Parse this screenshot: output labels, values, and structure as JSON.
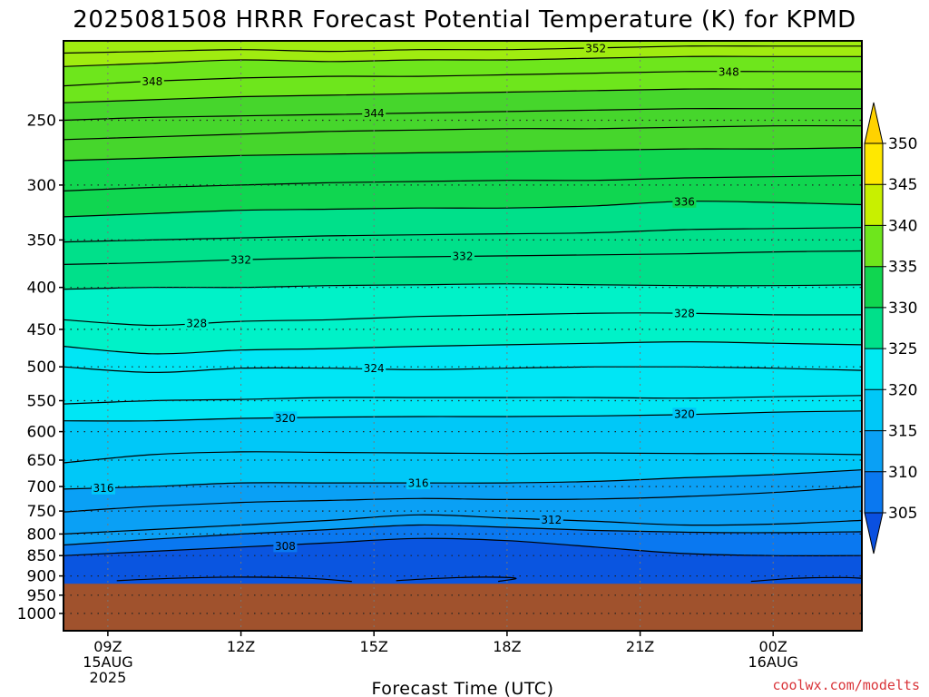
{
  "title": "2025081508 HRRR Forecast Potential Temperature (K) for KPMD",
  "credit": "coolwx.com/modelts",
  "colors": {
    "ground": "#a0522d",
    "band_colors": [
      "#0a55e0",
      "#0a78f0",
      "#0aa0f5",
      "#00c8f8",
      "#00e6f5",
      "#00f2c8",
      "#00e08a",
      "#10d650",
      "#46d62c",
      "#6ee61c",
      "#a0ec10",
      "#c8f000",
      "#ffe800",
      "#ffd200"
    ]
  },
  "chart_data": {
    "type": "contour",
    "title": "2025081508 HRRR Forecast Potential Temperature (K) for KPMD",
    "xlabel": "Forecast Time (UTC)",
    "ylabel": "",
    "x_range_hours": [
      8.0,
      26.0
    ],
    "x_ticks": [
      {
        "hour": 9,
        "lines": [
          "09Z",
          "15AUG",
          "2025"
        ]
      },
      {
        "hour": 12,
        "lines": [
          "12Z"
        ]
      },
      {
        "hour": 15,
        "lines": [
          "15Z"
        ]
      },
      {
        "hour": 18,
        "lines": [
          "18Z"
        ]
      },
      {
        "hour": 21,
        "lines": [
          "21Z"
        ]
      },
      {
        "hour": 24,
        "lines": [
          "00Z",
          "16AUG"
        ]
      }
    ],
    "y_axis": "pressure (hPa), top of plot about 200",
    "y_ticks": [
      250,
      300,
      350,
      400,
      450,
      500,
      550,
      600,
      650,
      700,
      750,
      800,
      850,
      900,
      950,
      1000
    ],
    "grid": "dotted",
    "ground_level_hpa": 920,
    "colorbar": {
      "levels": [
        305,
        310,
        315,
        320,
        325,
        330,
        335,
        340,
        345,
        350
      ],
      "extend": "both",
      "placement": "right"
    },
    "contour_interval": 2,
    "contours": [
      {
        "value": 308,
        "points": [
          [
            8.0,
            850
          ],
          [
            10,
            840
          ],
          [
            12,
            830
          ],
          [
            14,
            820
          ],
          [
            16,
            810
          ],
          [
            18,
            815
          ],
          [
            20,
            830
          ],
          [
            22,
            845
          ],
          [
            24,
            850
          ],
          [
            26,
            850
          ]
        ]
      },
      {
        "value": 310,
        "points": [
          [
            8.0,
            825
          ],
          [
            10,
            812
          ],
          [
            12,
            800
          ],
          [
            14,
            790
          ],
          [
            16,
            780
          ],
          [
            18,
            785
          ],
          [
            20,
            792
          ],
          [
            22,
            796
          ],
          [
            24,
            797
          ],
          [
            26,
            795
          ]
        ]
      },
      {
        "value": 312,
        "points": [
          [
            8.0,
            800
          ],
          [
            10,
            790
          ],
          [
            12,
            780
          ],
          [
            14,
            770
          ],
          [
            16,
            758
          ],
          [
            18,
            765
          ],
          [
            20,
            772
          ],
          [
            22,
            780
          ],
          [
            24,
            778
          ],
          [
            26,
            770
          ]
        ]
      },
      {
        "value": 314,
        "points": [
          [
            8.0,
            752
          ],
          [
            10,
            740
          ],
          [
            12,
            732
          ],
          [
            14,
            728
          ],
          [
            16,
            724
          ],
          [
            18,
            726
          ],
          [
            20,
            725
          ],
          [
            22,
            720
          ],
          [
            24,
            712
          ],
          [
            26,
            700
          ]
        ]
      },
      {
        "value": 316,
        "points": [
          [
            8.0,
            705
          ],
          [
            10,
            700
          ],
          [
            12,
            693
          ],
          [
            14,
            693
          ],
          [
            16,
            693
          ],
          [
            18,
            693
          ],
          [
            20,
            690
          ],
          [
            22,
            683
          ],
          [
            24,
            677
          ],
          [
            26,
            668
          ]
        ]
      },
      {
        "value": 318,
        "points": [
          [
            8.0,
            655
          ],
          [
            10,
            640
          ],
          [
            12,
            635
          ],
          [
            14,
            636
          ],
          [
            16,
            637
          ],
          [
            18,
            638
          ],
          [
            20,
            637
          ],
          [
            22,
            638
          ],
          [
            24,
            638
          ],
          [
            26,
            640
          ]
        ]
      },
      {
        "value": 320,
        "points": [
          [
            8.0,
            582
          ],
          [
            10,
            582
          ],
          [
            12,
            578
          ],
          [
            14,
            576
          ],
          [
            16,
            575
          ],
          [
            18,
            575
          ],
          [
            20,
            574
          ],
          [
            22,
            572
          ],
          [
            24,
            568
          ],
          [
            26,
            566
          ]
        ]
      },
      {
        "value": 322,
        "points": [
          [
            8.0,
            555
          ],
          [
            10,
            550
          ],
          [
            12,
            548
          ],
          [
            14,
            545
          ],
          [
            16,
            545
          ],
          [
            18,
            545
          ],
          [
            20,
            545
          ],
          [
            22,
            546
          ],
          [
            24,
            544
          ],
          [
            26,
            542
          ]
        ]
      },
      {
        "value": 324,
        "points": [
          [
            8.0,
            500
          ],
          [
            10,
            508
          ],
          [
            12,
            502
          ],
          [
            14,
            502
          ],
          [
            16,
            504
          ],
          [
            18,
            502
          ],
          [
            20,
            500
          ],
          [
            22,
            500
          ],
          [
            24,
            502
          ],
          [
            26,
            505
          ]
        ]
      },
      {
        "value": 326,
        "points": [
          [
            8.0,
            472
          ],
          [
            10,
            482
          ],
          [
            12,
            477
          ],
          [
            14,
            475
          ],
          [
            16,
            472
          ],
          [
            18,
            470
          ],
          [
            20,
            468
          ],
          [
            22,
            466
          ],
          [
            24,
            468
          ],
          [
            26,
            470
          ]
        ]
      },
      {
        "value": 328,
        "points": [
          [
            8.0,
            438
          ],
          [
            10,
            445
          ],
          [
            12,
            440
          ],
          [
            14,
            438
          ],
          [
            16,
            434
          ],
          [
            18,
            432
          ],
          [
            20,
            430
          ],
          [
            22,
            430
          ],
          [
            24,
            432
          ],
          [
            26,
            432
          ]
        ]
      },
      {
        "value": 330,
        "points": [
          [
            8.0,
            402
          ],
          [
            10,
            400
          ],
          [
            12,
            400
          ],
          [
            14,
            398
          ],
          [
            16,
            397
          ],
          [
            18,
            396
          ],
          [
            20,
            397
          ],
          [
            22,
            398
          ],
          [
            24,
            398
          ],
          [
            26,
            397
          ]
        ]
      },
      {
        "value": 332,
        "points": [
          [
            8.0,
            375
          ],
          [
            10,
            373
          ],
          [
            12,
            370
          ],
          [
            14,
            368
          ],
          [
            16,
            367
          ],
          [
            18,
            366
          ],
          [
            20,
            365
          ],
          [
            22,
            364
          ],
          [
            24,
            362
          ],
          [
            26,
            361
          ]
        ]
      },
      {
        "value": 334,
        "points": [
          [
            8.0,
            352
          ],
          [
            10,
            350
          ],
          [
            12,
            348
          ],
          [
            14,
            346
          ],
          [
            16,
            345
          ],
          [
            18,
            344
          ],
          [
            20,
            343
          ],
          [
            22,
            340
          ],
          [
            24,
            339
          ],
          [
            26,
            338
          ]
        ]
      },
      {
        "value": 336,
        "points": [
          [
            8.0,
            328
          ],
          [
            10,
            325
          ],
          [
            12,
            322
          ],
          [
            14,
            321
          ],
          [
            16,
            320
          ],
          [
            18,
            320
          ],
          [
            20,
            318
          ],
          [
            22,
            314
          ],
          [
            24,
            315
          ],
          [
            26,
            317
          ]
        ]
      },
      {
        "value": 338,
        "points": [
          [
            8.0,
            305
          ],
          [
            10,
            302
          ],
          [
            12,
            300
          ],
          [
            14,
            298
          ],
          [
            16,
            297
          ],
          [
            18,
            296
          ],
          [
            20,
            296
          ],
          [
            22,
            294
          ],
          [
            24,
            293
          ],
          [
            26,
            292
          ]
        ]
      },
      {
        "value": 340,
        "points": [
          [
            8.0,
            280
          ],
          [
            10,
            278
          ],
          [
            12,
            276
          ],
          [
            14,
            275
          ],
          [
            16,
            274
          ],
          [
            18,
            273
          ],
          [
            20,
            272
          ],
          [
            22,
            271
          ],
          [
            24,
            271
          ],
          [
            26,
            270
          ]
        ]
      },
      {
        "value": 342,
        "points": [
          [
            8.0,
            264
          ],
          [
            10,
            262
          ],
          [
            12,
            260
          ],
          [
            14,
            258
          ],
          [
            16,
            257
          ],
          [
            18,
            256
          ],
          [
            20,
            256
          ],
          [
            22,
            255
          ],
          [
            24,
            254
          ],
          [
            26,
            254
          ]
        ]
      },
      {
        "value": 344,
        "points": [
          [
            8.0,
            250
          ],
          [
            10,
            248
          ],
          [
            12,
            247
          ],
          [
            14,
            246
          ],
          [
            16,
            245
          ],
          [
            18,
            244
          ],
          [
            20,
            243
          ],
          [
            22,
            242
          ],
          [
            24,
            242
          ],
          [
            26,
            242
          ]
        ]
      },
      {
        "value": 346,
        "points": [
          [
            8.0,
            238
          ],
          [
            10,
            236
          ],
          [
            12,
            234
          ],
          [
            14,
            233
          ],
          [
            16,
            232
          ],
          [
            18,
            231
          ],
          [
            20,
            230
          ],
          [
            22,
            229
          ],
          [
            24,
            229
          ],
          [
            26,
            229
          ]
        ]
      },
      {
        "value": 348,
        "points": [
          [
            8.0,
            227
          ],
          [
            10,
            224
          ],
          [
            12,
            222
          ],
          [
            14,
            221
          ],
          [
            16,
            221
          ],
          [
            18,
            220
          ],
          [
            20,
            219
          ],
          [
            22,
            218
          ],
          [
            24,
            218
          ],
          [
            26,
            218
          ]
        ]
      },
      {
        "value": 350,
        "points": [
          [
            8.0,
            215
          ],
          [
            10,
            213
          ],
          [
            12,
            211
          ],
          [
            14,
            212
          ],
          [
            16,
            211
          ],
          [
            18,
            211
          ],
          [
            20,
            210
          ],
          [
            22,
            209
          ],
          [
            24,
            209
          ],
          [
            26,
            209
          ]
        ]
      },
      {
        "value": 352,
        "points": [
          [
            8.0,
            207
          ],
          [
            10,
            206
          ],
          [
            12,
            205
          ],
          [
            14,
            206
          ],
          [
            16,
            205
          ],
          [
            18,
            205
          ],
          [
            20,
            204
          ],
          [
            22,
            203
          ],
          [
            24,
            203
          ],
          [
            26,
            203
          ]
        ]
      }
    ],
    "contour_labels": [
      {
        "text": "308",
        "hour": 13.0,
        "p": 827
      },
      {
        "text": "312",
        "hour": 19.0,
        "p": 768
      },
      {
        "text": "316",
        "hour": 8.9,
        "p": 703
      },
      {
        "text": "316",
        "hour": 16.0,
        "p": 693
      },
      {
        "text": "320",
        "hour": 13.0,
        "p": 577
      },
      {
        "text": "320",
        "hour": 22.0,
        "p": 571
      },
      {
        "text": "324",
        "hour": 15.0,
        "p": 502
      },
      {
        "text": "328",
        "hour": 11.0,
        "p": 442
      },
      {
        "text": "328",
        "hour": 22.0,
        "p": 430
      },
      {
        "text": "332",
        "hour": 12.0,
        "p": 370
      },
      {
        "text": "332",
        "hour": 17.0,
        "p": 366
      },
      {
        "text": "336",
        "hour": 22.0,
        "p": 314
      },
      {
        "text": "344",
        "hour": 15.0,
        "p": 245
      },
      {
        "text": "348",
        "hour": 10.0,
        "p": 224
      },
      {
        "text": "348",
        "hour": 23.0,
        "p": 218
      },
      {
        "text": "352",
        "hour": 20.0,
        "p": 204
      }
    ],
    "low_cells": [
      {
        "value": 306,
        "points": [
          [
            9.2,
            912
          ],
          [
            10.5,
            906
          ],
          [
            12.0,
            903
          ],
          [
            13.5,
            906
          ],
          [
            14.5,
            914
          ]
        ]
      },
      {
        "value": 306,
        "points": [
          [
            15.5,
            912
          ],
          [
            16.5,
            906
          ],
          [
            17.5,
            903
          ],
          [
            18.2,
            906
          ],
          [
            17.8,
            914
          ]
        ]
      },
      {
        "value": 306,
        "points": [
          [
            23.5,
            914
          ],
          [
            24.5,
            906
          ],
          [
            25.5,
            904
          ],
          [
            26.0,
            906
          ]
        ]
      }
    ]
  }
}
